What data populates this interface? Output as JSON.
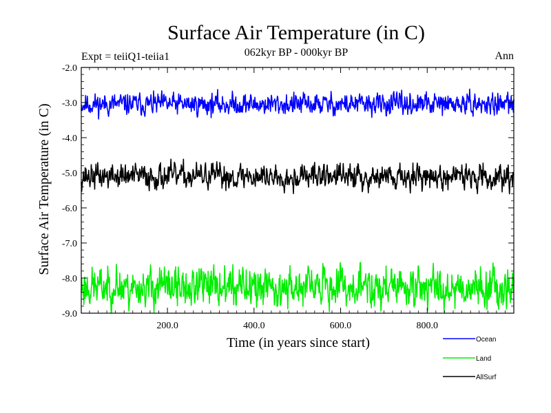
{
  "chart_data": {
    "type": "line",
    "title": "Surface Air Temperature (in C)",
    "subtitle": "062kyr BP - 000kyr BP",
    "left_label": "Expt = teiiQ1-teiia1",
    "right_label": "Ann",
    "xlabel": "Time (in years since start)",
    "ylabel": "Surface Air Temperature (in C)",
    "xlim": [
      1,
      1000
    ],
    "ylim": [
      -9.0,
      -2.0
    ],
    "x_ticks": [
      200,
      400,
      600,
      800
    ],
    "x_tick_labels": [
      "200.0",
      "400.0",
      "600.0",
      "800.0"
    ],
    "y_ticks": [
      -2,
      -3,
      -4,
      -5,
      -6,
      -7,
      -8,
      -9
    ],
    "y_tick_labels": [
      "-2.0",
      "-3.0",
      "-4.0",
      "-5.0",
      "-6.0",
      "-7.0",
      "-8.0",
      "-9.0"
    ],
    "legend_position": "bottom-right outside",
    "series": [
      {
        "name": "Ocean",
        "color": "#0000ff",
        "mean": -3.05,
        "noise_amplitude": 0.3,
        "min": -3.55,
        "max": -2.6,
        "seed": 11
      },
      {
        "name": "Land",
        "color": "#00ee00",
        "mean": -8.25,
        "noise_amplitude": 0.55,
        "min": -9.0,
        "max": -7.55,
        "seed": 23
      },
      {
        "name": "AllSurf",
        "color": "#000000",
        "mean": -5.1,
        "noise_amplitude": 0.35,
        "min": -5.6,
        "max": -4.55,
        "seed": 37
      }
    ]
  }
}
